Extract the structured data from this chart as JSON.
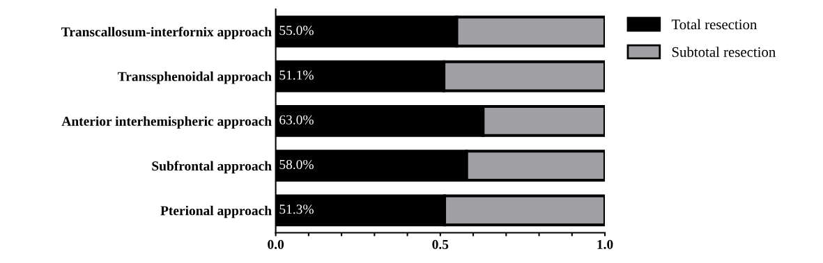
{
  "chart_data": {
    "type": "bar",
    "orientation": "horizontal",
    "stacked": true,
    "categories": [
      "Transcallosum-interfornix approach",
      "Transsphenoidal approach",
      "Anterior interhemispheric approach",
      "Subfrontal approach",
      "Pterional approach"
    ],
    "series": [
      {
        "name": "Total resection",
        "color": "#000000",
        "values": [
          0.55,
          0.511,
          0.63,
          0.58,
          0.513
        ],
        "value_labels": [
          "55.0%",
          "51.1%",
          "63.0%",
          "58.0%",
          "51.3%"
        ]
      },
      {
        "name": "Subtotal resection",
        "color": "#a0a0a4",
        "values": [
          0.45,
          0.489,
          0.37,
          0.42,
          0.487
        ]
      }
    ],
    "xlim": [
      0,
      1.0
    ],
    "xticks": [
      {
        "value": 0,
        "label": "0.0"
      },
      {
        "value": 0.1,
        "label": null
      },
      {
        "value": 0.2,
        "label": null
      },
      {
        "value": 0.3,
        "label": null
      },
      {
        "value": 0.4,
        "label": null
      },
      {
        "value": 0.5,
        "label": "0.5"
      },
      {
        "value": 0.6,
        "label": null
      },
      {
        "value": 0.7,
        "label": null
      },
      {
        "value": 0.8,
        "label": null
      },
      {
        "value": 0.9,
        "label": null
      },
      {
        "value": 1.0,
        "label": "1.0"
      }
    ],
    "legend": "top right",
    "grid": false
  }
}
